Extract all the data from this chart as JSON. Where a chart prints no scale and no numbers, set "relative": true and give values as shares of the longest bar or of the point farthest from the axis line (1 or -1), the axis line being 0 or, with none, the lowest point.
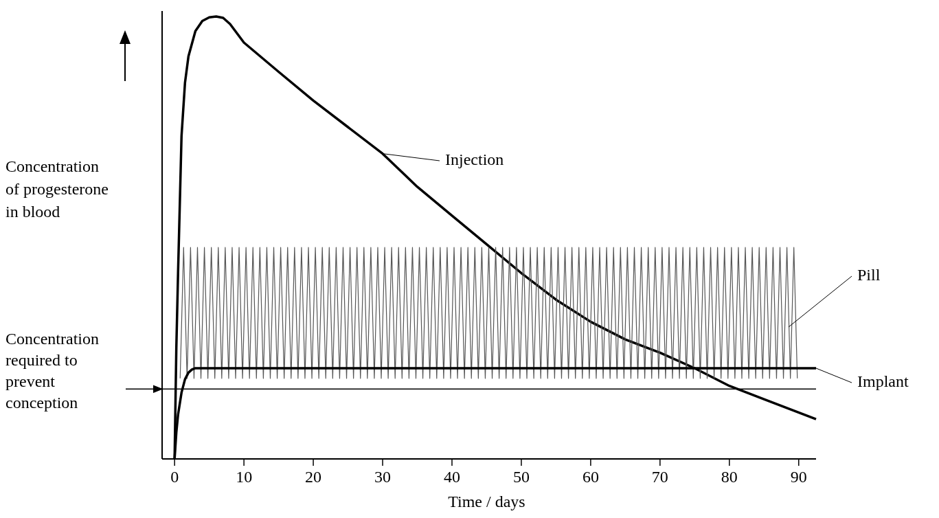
{
  "chart_data": {
    "type": "line",
    "relative": true,
    "ylabel": "Concentration of progesterone in blood",
    "xlabel": "Time / days",
    "xlim": [
      -1.8,
      92.5
    ],
    "xticks": [
      0,
      10,
      20,
      30,
      40,
      50,
      60,
      70,
      80,
      90
    ],
    "legend": "right",
    "series": [
      {
        "name": "Injection",
        "color": "#000000",
        "x": [
          0,
          0.25,
          0.5,
          1,
          1.5,
          2,
          3,
          4,
          5,
          6,
          7,
          8,
          10,
          15,
          20,
          25,
          30,
          35,
          40,
          45,
          50,
          55,
          60,
          65,
          70,
          75,
          80,
          85,
          92.5
        ],
        "values": [
          0,
          0.25,
          0.42,
          0.73,
          0.85,
          0.91,
          0.967,
          0.99,
          0.998,
          1,
          0.997,
          0.983,
          0.941,
          0.875,
          0.81,
          0.75,
          0.69,
          0.615,
          0.55,
          0.485,
          0.42,
          0.36,
          0.31,
          0.27,
          0.24,
          0.205,
          0.165,
          0.135,
          0.09
        ]
      },
      {
        "name": "Pill",
        "color": "#555555",
        "x": [
          0.8,
          1.3,
          1.8,
          2.3,
          2.8,
          3.3,
          3.8,
          4.3,
          4.8,
          5.3,
          5.8,
          6.3,
          6.8,
          7.3,
          7.8,
          8.3,
          8.8,
          9.3,
          9.8,
          10.3,
          10.8,
          11.3,
          11.8,
          12.3,
          12.8,
          13.3,
          13.8,
          14.3,
          14.8,
          15.3,
          15.8,
          16.3,
          16.8,
          17.3,
          17.8,
          18.3,
          18.8,
          19.3,
          19.8,
          20.3,
          20.8,
          21.3,
          21.8,
          22.3,
          22.8,
          23.3,
          23.8,
          24.3,
          24.8,
          25.3,
          25.8,
          26.3,
          26.8,
          27.3,
          27.8,
          28.3,
          28.8,
          29.3,
          29.8,
          30.3,
          30.8,
          31.3,
          31.8,
          32.3,
          32.8,
          33.3,
          33.8,
          34.3,
          34.8,
          35.3,
          35.8,
          36.3,
          36.8,
          37.3,
          37.8,
          38.3,
          38.8,
          39.3,
          39.8,
          40.3,
          40.8,
          41.3,
          41.8,
          42.3,
          42.8,
          43.3,
          43.8,
          44.3,
          44.8,
          45.3,
          45.8,
          46.3,
          46.8,
          47.3,
          47.8,
          48.3,
          48.8,
          49.3,
          49.8,
          50.3,
          50.8,
          51.3,
          51.8,
          52.3,
          52.8,
          53.3,
          53.8,
          54.3,
          54.8,
          55.3,
          55.8,
          56.3,
          56.8,
          57.3,
          57.8,
          58.3,
          58.8,
          59.3,
          59.8,
          60.3,
          60.8,
          61.3,
          61.8,
          62.3,
          62.8,
          63.3,
          63.8,
          64.3,
          64.8,
          65.3,
          65.8,
          66.3,
          66.8,
          67.3,
          67.8,
          68.3,
          68.8,
          69.3,
          69.8,
          70.3,
          70.8,
          71.3,
          71.8,
          72.3,
          72.8,
          73.3,
          73.8,
          74.3,
          74.8,
          75.3,
          75.8,
          76.3,
          76.8,
          77.3,
          77.8,
          78.3,
          78.8,
          79.3,
          79.8,
          80.3,
          80.8,
          81.3,
          81.8,
          82.3,
          82.8,
          83.3,
          83.8,
          84.3,
          84.8,
          85.3,
          85.8,
          86.3,
          86.8,
          87.3,
          87.8,
          88.3,
          88.8,
          89.3,
          89.8
        ],
        "values": [
          0.182,
          0.478,
          0.182,
          0.478,
          0.182,
          0.478,
          0.182,
          0.478,
          0.182,
          0.478,
          0.182,
          0.478,
          0.182,
          0.478,
          0.182,
          0.478,
          0.182,
          0.478,
          0.182,
          0.478,
          0.182,
          0.478,
          0.182,
          0.478,
          0.182,
          0.478,
          0.182,
          0.478,
          0.182,
          0.478,
          0.182,
          0.478,
          0.182,
          0.478,
          0.182,
          0.478,
          0.182,
          0.478,
          0.182,
          0.478,
          0.182,
          0.478,
          0.182,
          0.478,
          0.182,
          0.478,
          0.182,
          0.478,
          0.182,
          0.478,
          0.182,
          0.478,
          0.182,
          0.478,
          0.182,
          0.478,
          0.182,
          0.478,
          0.182,
          0.478,
          0.182,
          0.478,
          0.182,
          0.478,
          0.182,
          0.478,
          0.182,
          0.478,
          0.182,
          0.478,
          0.182,
          0.478,
          0.182,
          0.478,
          0.182,
          0.478,
          0.182,
          0.478,
          0.182,
          0.478,
          0.182,
          0.478,
          0.182,
          0.478,
          0.182,
          0.478,
          0.182,
          0.478,
          0.182,
          0.478,
          0.182,
          0.478,
          0.182,
          0.478,
          0.182,
          0.478,
          0.182,
          0.478,
          0.182,
          0.478,
          0.182,
          0.478,
          0.182,
          0.478,
          0.182,
          0.478,
          0.182,
          0.478,
          0.182,
          0.478,
          0.182,
          0.478,
          0.182,
          0.478,
          0.182,
          0.478,
          0.182,
          0.478,
          0.182,
          0.478,
          0.182,
          0.478,
          0.182,
          0.478,
          0.182,
          0.478,
          0.182,
          0.478,
          0.182,
          0.478,
          0.182,
          0.478,
          0.182,
          0.478,
          0.182,
          0.478,
          0.182,
          0.478,
          0.182,
          0.478,
          0.182,
          0.478,
          0.182,
          0.478,
          0.182,
          0.478,
          0.182,
          0.478,
          0.182,
          0.478,
          0.182,
          0.478,
          0.182,
          0.478,
          0.182,
          0.478,
          0.182,
          0.478,
          0.182,
          0.478,
          0.182,
          0.478,
          0.182,
          0.478,
          0.182,
          0.478,
          0.182,
          0.478,
          0.182,
          0.478,
          0.182,
          0.478,
          0.182,
          0.478,
          0.182,
          0.478,
          0.182,
          0.478,
          0.182
        ]
      },
      {
        "name": "Implant",
        "color": "#000000",
        "x": [
          0,
          0.25,
          0.5,
          1,
          1.5,
          2,
          2.5,
          3,
          92.5
        ],
        "values": [
          0,
          0.06,
          0.1,
          0.15,
          0.18,
          0.195,
          0.202,
          0.205,
          0.205
        ]
      }
    ],
    "ref_lines": [
      {
        "axis": "y",
        "value": 0.158,
        "label": "Concentration required to prevent conception",
        "color": "#000000"
      }
    ]
  }
}
